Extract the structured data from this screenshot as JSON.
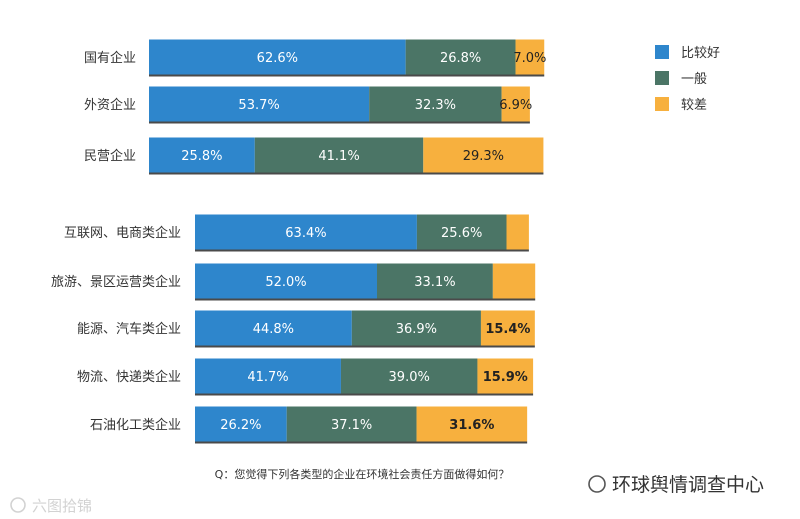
{
  "chart_data": [
    {
      "type": "bar",
      "orientation": "horizontal",
      "stacked": true,
      "categories": [
        "国有企业",
        "外资企业",
        "民营企业"
      ],
      "series": [
        {
          "name": "比较好",
          "color": "#2e86cc",
          "values": [
            62.6,
            53.7,
            25.8
          ]
        },
        {
          "name": "一般",
          "color": "#4b7566",
          "values": [
            26.8,
            32.3,
            41.1
          ]
        },
        {
          "name": "较差",
          "color": "#f7b03e",
          "values": [
            7.0,
            6.9,
            29.3
          ]
        }
      ],
      "value_labels": [
        [
          "62.6%",
          "26.8%",
          "7.0%"
        ],
        [
          "53.7%",
          "32.3%",
          "6.9%"
        ],
        [
          "25.8%",
          "41.1%",
          "29.3%"
        ]
      ]
    },
    {
      "type": "bar",
      "orientation": "horizontal",
      "stacked": true,
      "categories": [
        "互联网、电商类企业",
        "旅游、景区运营类企业",
        "能源、汽车类企业",
        "物流、快递类企业",
        "石油化工类企业"
      ],
      "series": [
        {
          "name": "比较好",
          "color": "#2e86cc",
          "values": [
            63.4,
            52.0,
            44.8,
            41.7,
            26.2
          ]
        },
        {
          "name": "一般",
          "color": "#4b7566",
          "values": [
            25.6,
            33.1,
            36.9,
            39.0,
            37.1
          ]
        },
        {
          "name": "较差",
          "color": "#f7b03e",
          "values": [
            6.4,
            12.1,
            15.4,
            15.9,
            31.6
          ]
        }
      ],
      "value_labels": [
        [
          "63.4%",
          "25.6%",
          ""
        ],
        [
          "52.0%",
          "33.1%",
          ""
        ],
        [
          "44.8%",
          "36.9%",
          "15.4%"
        ],
        [
          "41.7%",
          "39.0%",
          "15.9%"
        ],
        [
          "26.2%",
          "37.1%",
          "31.6%"
        ]
      ]
    }
  ],
  "legend": {
    "items": [
      {
        "label": "比较好",
        "color": "#2e86cc"
      },
      {
        "label": "一般",
        "color": "#4b7566"
      },
      {
        "label": "较差",
        "color": "#f7b03e"
      }
    ]
  },
  "question": "Q：您觉得下列各类型的企业在环境社会责任方面做得如何？",
  "watermark_left": "六图拾锦",
  "watermark_right": "环球舆情调查中心"
}
